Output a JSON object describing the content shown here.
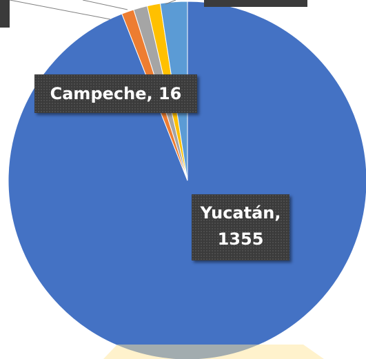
{
  "chart_data": {
    "type": "pie",
    "values": [
      1355,
      16,
      18,
      17,
      35
    ],
    "value_labels": [
      "Yucatán, 1355",
      "Campeche, 16",
      null,
      null,
      null
    ],
    "colors": [
      "#4472c4",
      "#ed7d31",
      "#a5a5a5",
      "#ffc000",
      "#5b9bd5"
    ]
  }
}
